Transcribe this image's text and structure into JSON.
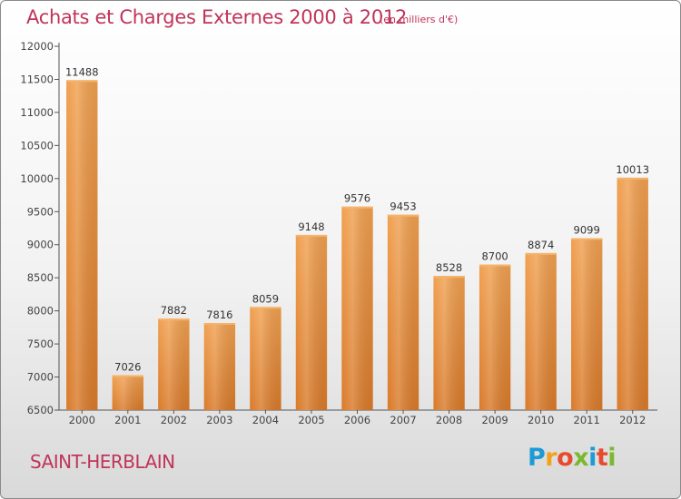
{
  "header": {
    "title": "Achats et Charges Externes 2000 à 2012",
    "subtitle": "(en milliers d'€)"
  },
  "footer": {
    "city": "SAINT-HERBLAIN",
    "logo": {
      "letters": [
        "P",
        "r",
        "o",
        "x",
        "i",
        "t",
        "i"
      ],
      "colors": [
        "#1e9bd6",
        "#f2a21a",
        "#e84a2e",
        "#7ab92d",
        "#1e9bd6",
        "#e84a2e",
        "#7ab92d"
      ]
    }
  },
  "chart_data": {
    "type": "bar",
    "title": "Achats et Charges Externes 2000 à 2012",
    "subtitle": "(en milliers d'€)",
    "categories": [
      "2000",
      "2001",
      "2002",
      "2003",
      "2004",
      "2005",
      "2006",
      "2007",
      "2008",
      "2009",
      "2010",
      "2011",
      "2012"
    ],
    "values": [
      11488,
      7026,
      7882,
      7816,
      8059,
      9148,
      9576,
      9453,
      8528,
      8700,
      8874,
      9099,
      10013
    ],
    "value_labels": [
      "11488",
      "7026",
      "7882",
      "7816",
      "8059",
      "9148",
      "9576",
      "9453",
      "8528",
      "8700",
      "8874",
      "9099",
      "10013"
    ],
    "ylim": [
      6500,
      12000
    ],
    "yticks": [
      "6500",
      "7000",
      "7500",
      "8000",
      "8500",
      "9000",
      "9500",
      "10000",
      "10500",
      "11000",
      "11500",
      "12000"
    ],
    "grid": false,
    "bar_color": "#f0a050",
    "bar_color_dark": "#d97a2a"
  }
}
